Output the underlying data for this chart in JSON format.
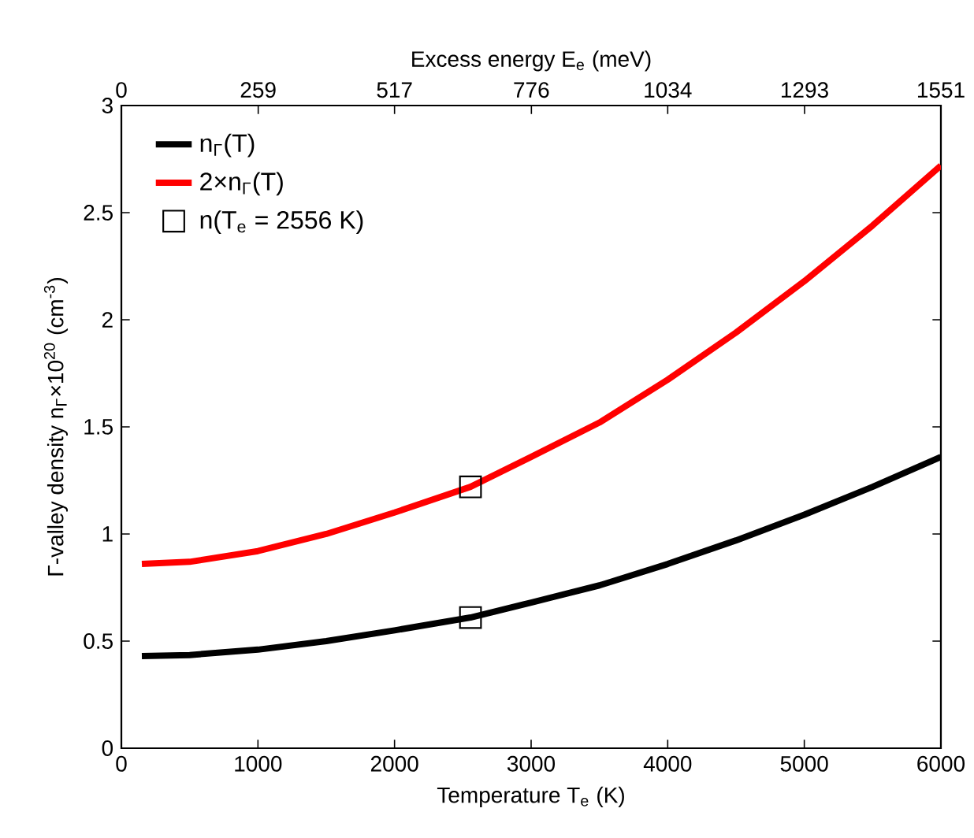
{
  "chart_data": {
    "type": "line",
    "xlabel": "Temperature T$_{e}$ (K)",
    "ylabel": "Γ-valley density n$_{Γ}$×10$^{20}$ (cm$^{-3}$)",
    "x2label": "Excess energy E$_{e}$ (meV)",
    "xlim": [
      0,
      6000
    ],
    "xticks": [
      0,
      1000,
      2000,
      3000,
      4000,
      5000,
      6000
    ],
    "ylim": [
      0,
      3
    ],
    "yticks": [
      0,
      0.5,
      1,
      1.5,
      2,
      2.5,
      3
    ],
    "x2lim": [
      0,
      1551
    ],
    "x2ticks": [
      0,
      259,
      517,
      776,
      1034,
      1293,
      1551
    ],
    "legend": "top left",
    "series": [
      {
        "name": "n$_{Γ}$(T)",
        "color": "#000000",
        "x": [
          150,
          500,
          1000,
          1500,
          2000,
          2556,
          3000,
          3500,
          4000,
          4500,
          5000,
          5500,
          6000
        ],
        "values": [
          0.43,
          0.435,
          0.46,
          0.5,
          0.55,
          0.61,
          0.68,
          0.76,
          0.86,
          0.97,
          1.09,
          1.22,
          1.36
        ]
      },
      {
        "name": "2×n$_{Γ}$(T)",
        "color": "#ff0000",
        "x": [
          150,
          500,
          1000,
          1500,
          2000,
          2556,
          3000,
          3500,
          4000,
          4500,
          5000,
          5500,
          6000
        ],
        "values": [
          0.86,
          0.87,
          0.92,
          1.0,
          1.1,
          1.22,
          1.36,
          1.52,
          1.72,
          1.94,
          2.18,
          2.44,
          2.72
        ]
      },
      {
        "name": "n(T$_{e}$ = 2556 K)",
        "type": "scatter",
        "marker": "square",
        "color": "#000000",
        "x": [
          2556,
          2556
        ],
        "values": [
          0.61,
          1.22
        ]
      }
    ]
  }
}
